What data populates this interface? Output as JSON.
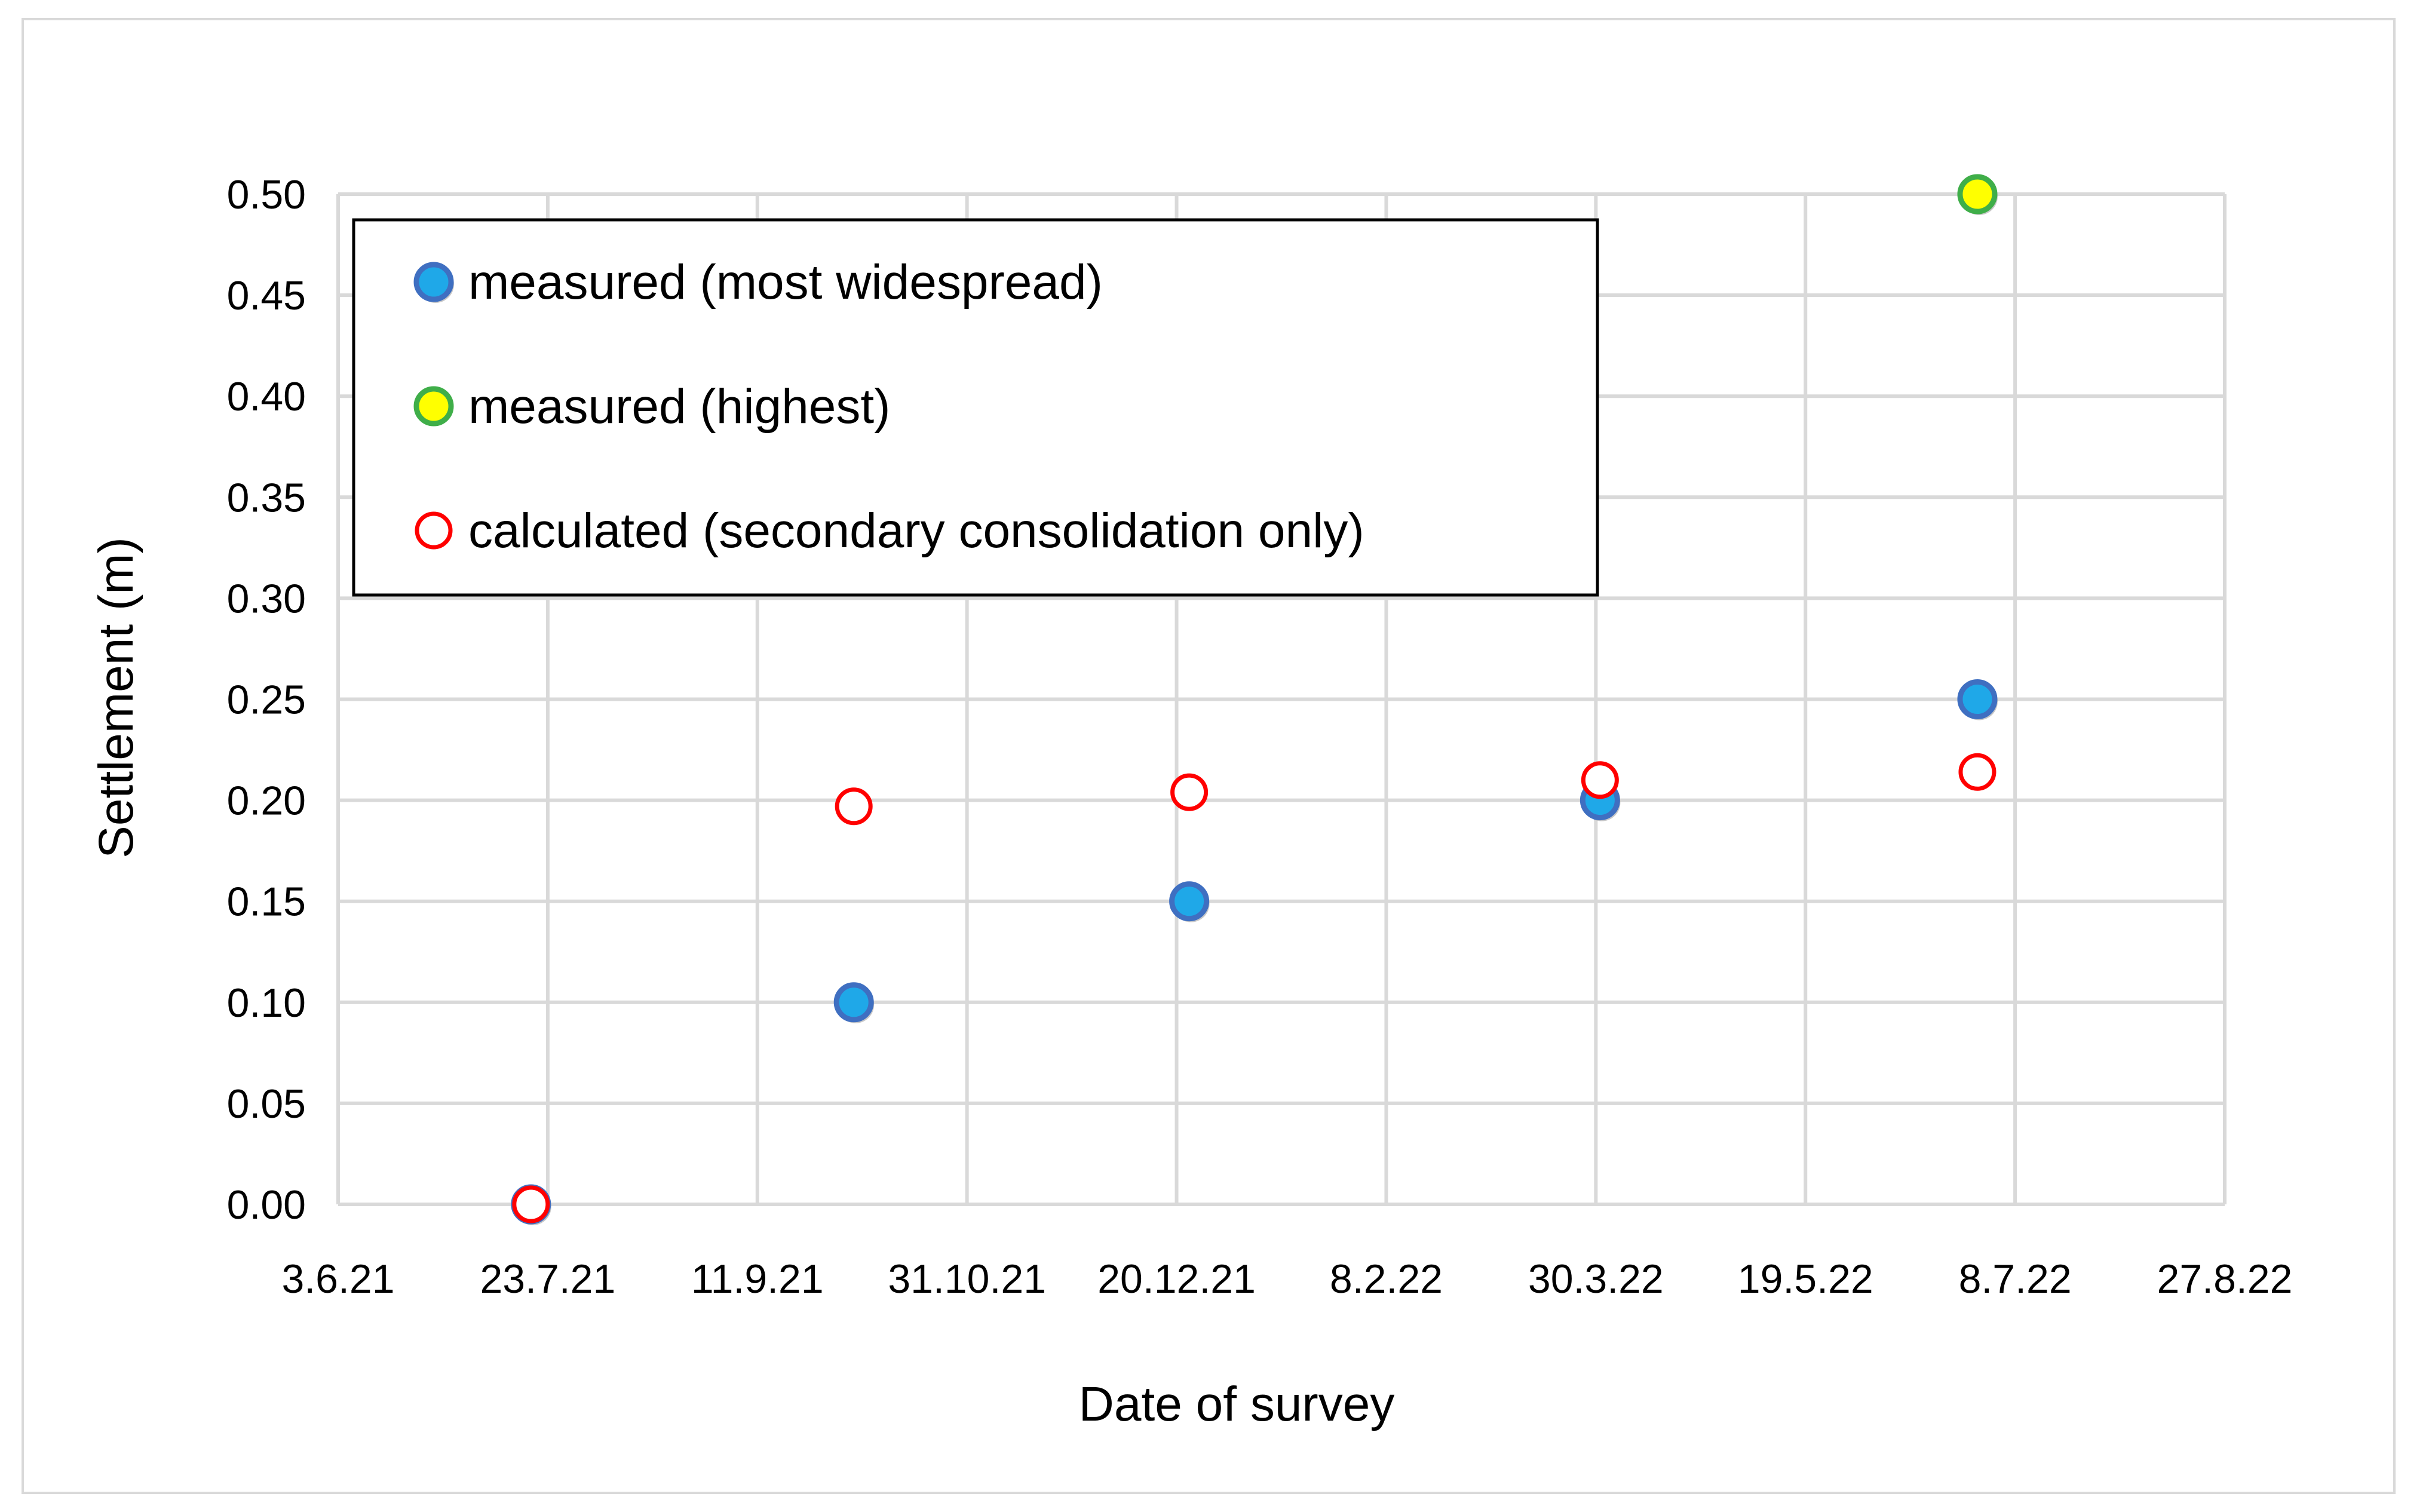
{
  "chart_data": {
    "type": "scatter",
    "title": "",
    "xlabel": "Date of survey",
    "ylabel": "Settlement (m)",
    "x_axis": {
      "scale": "date",
      "tick_labels": [
        "3.6.21",
        "23.7.21",
        "11.9.21",
        "31.10.21",
        "20.12.21",
        "8.2.22",
        "30.3.22",
        "19.5.22",
        "8.7.22",
        "27.8.22"
      ],
      "tick_dates": [
        "2021-06-03",
        "2021-07-23",
        "2021-09-11",
        "2021-10-31",
        "2021-12-20",
        "2022-02-08",
        "2022-03-30",
        "2022-05-19",
        "2022-07-08",
        "2022-08-27"
      ],
      "xlim": [
        "2021-06-03",
        "2022-08-27"
      ]
    },
    "y_axis": {
      "tick_labels": [
        "0.00",
        "0.05",
        "0.10",
        "0.15",
        "0.20",
        "0.25",
        "0.30",
        "0.35",
        "0.40",
        "0.45",
        "0.50"
      ],
      "ylim": [
        0,
        0.5
      ]
    },
    "grid": true,
    "legend_placement": "top-left",
    "series": [
      {
        "name": "measured (most widespread)",
        "marker": "filled-circle",
        "fill": "#1fa8e8",
        "stroke": "#3f6fc1",
        "points": [
          {
            "x": "2021-07-19",
            "y": 0.0
          },
          {
            "x": "2021-10-04",
            "y": 0.1
          },
          {
            "x": "2021-12-23",
            "y": 0.15
          },
          {
            "x": "2022-03-31",
            "y": 0.2
          },
          {
            "x": "2022-06-29",
            "y": 0.25
          }
        ]
      },
      {
        "name": "measured (highest)",
        "marker": "filled-circle",
        "fill": "#ffff00",
        "stroke": "#3fae49",
        "points": [
          {
            "x": "2022-06-29",
            "y": 0.5
          }
        ]
      },
      {
        "name": "calculated (secondary consolidation only)",
        "marker": "open-circle",
        "fill": "#ffffff",
        "stroke": "#ff0000",
        "points": [
          {
            "x": "2021-07-19",
            "y": 0.0
          },
          {
            "x": "2021-10-04",
            "y": 0.197
          },
          {
            "x": "2021-12-23",
            "y": 0.204
          },
          {
            "x": "2022-03-31",
            "y": 0.21
          },
          {
            "x": "2022-06-29",
            "y": 0.214
          }
        ]
      }
    ]
  }
}
